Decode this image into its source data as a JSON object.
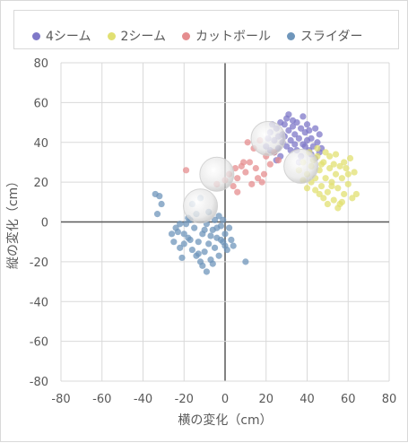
{
  "chart_data": {
    "type": "scatter",
    "xlabel": "横の変化（cm）",
    "ylabel": "縦の変化（cm）",
    "xlim": [
      -80,
      80
    ],
    "ylim": [
      -80,
      80
    ],
    "xticks": [
      -80,
      -60,
      -40,
      -20,
      0,
      20,
      40,
      60,
      80
    ],
    "yticks": [
      -80,
      -60,
      -40,
      -20,
      0,
      20,
      40,
      60,
      80
    ],
    "grid": true,
    "legend_position": "top",
    "series": [
      {
        "name": "4シーム",
        "color": "#7f78c8",
        "points": [
          [
            20,
            38
          ],
          [
            22,
            45
          ],
          [
            24,
            41
          ],
          [
            25,
            47
          ],
          [
            26,
            43
          ],
          [
            27,
            50
          ],
          [
            28,
            44
          ],
          [
            29,
            49
          ],
          [
            30,
            52
          ],
          [
            31,
            46
          ],
          [
            32,
            41
          ],
          [
            33,
            48
          ],
          [
            34,
            44
          ],
          [
            35,
            50
          ],
          [
            36,
            42
          ],
          [
            37,
            47
          ],
          [
            38,
            39
          ],
          [
            39,
            45
          ],
          [
            40,
            49
          ],
          [
            41,
            36
          ],
          [
            42,
            42
          ],
          [
            43,
            38
          ],
          [
            44,
            47
          ],
          [
            45,
            40
          ],
          [
            46,
            35
          ],
          [
            30,
            38
          ],
          [
            32,
            36
          ],
          [
            28,
            40
          ],
          [
            26,
            37
          ],
          [
            24,
            35
          ],
          [
            35,
            36
          ],
          [
            37,
            33
          ],
          [
            39,
            38
          ],
          [
            42,
            34
          ],
          [
            29,
            43
          ],
          [
            31,
            54
          ],
          [
            33,
            51
          ],
          [
            23,
            49
          ],
          [
            21,
            42
          ],
          [
            44,
            32
          ],
          [
            46,
            44
          ],
          [
            25,
            31
          ],
          [
            27,
            33
          ],
          [
            36,
            30
          ],
          [
            40,
            41
          ],
          [
            34,
            39
          ],
          [
            38,
            53
          ],
          [
            22,
            36
          ],
          [
            47,
            37
          ],
          [
            41,
            46
          ]
        ],
        "mean": [
          21,
          42
        ]
      },
      {
        "name": "2シーム",
        "color": "#e1e072",
        "points": [
          [
            36,
            26
          ],
          [
            38,
            30
          ],
          [
            40,
            24
          ],
          [
            42,
            28
          ],
          [
            44,
            22
          ],
          [
            45,
            33
          ],
          [
            46,
            26
          ],
          [
            47,
            18
          ],
          [
            48,
            30
          ],
          [
            49,
            22
          ],
          [
            50,
            15
          ],
          [
            51,
            27
          ],
          [
            52,
            20
          ],
          [
            53,
            11
          ],
          [
            54,
            24
          ],
          [
            55,
            17
          ],
          [
            56,
            9
          ],
          [
            57,
            22
          ],
          [
            58,
            14
          ],
          [
            59,
            27
          ],
          [
            60,
            19
          ],
          [
            61,
            32
          ],
          [
            62,
            12
          ],
          [
            63,
            25
          ],
          [
            64,
            14
          ],
          [
            41,
            35
          ],
          [
            43,
            31
          ],
          [
            45,
            37
          ],
          [
            47,
            29
          ],
          [
            49,
            35
          ],
          [
            51,
            33
          ],
          [
            53,
            29
          ],
          [
            55,
            7
          ],
          [
            57,
            10
          ],
          [
            50,
            9
          ],
          [
            52,
            18
          ],
          [
            46,
            14
          ],
          [
            48,
            12
          ],
          [
            44,
            16
          ],
          [
            42,
            20
          ],
          [
            54,
            34
          ],
          [
            58,
            30
          ],
          [
            60,
            24
          ],
          [
            56,
            28
          ],
          [
            40,
            17
          ],
          [
            38,
            21
          ]
        ],
        "mean": [
          37,
          28
        ]
      },
      {
        "name": "カットボール",
        "color": "#e58d8f",
        "points": [
          [
            -19,
            26
          ],
          [
            -4,
            19
          ],
          [
            0,
            21
          ],
          [
            2,
            24
          ],
          [
            4,
            18
          ],
          [
            6,
            22
          ],
          [
            8,
            28
          ],
          [
            10,
            25
          ],
          [
            12,
            30
          ],
          [
            13,
            19
          ],
          [
            15,
            27
          ],
          [
            16,
            22
          ],
          [
            18,
            20
          ],
          [
            20,
            33
          ],
          [
            22,
            29
          ],
          [
            24,
            35
          ],
          [
            26,
            31
          ],
          [
            11,
            40
          ],
          [
            14,
            37
          ],
          [
            17,
            41
          ],
          [
            6,
            15
          ],
          [
            9,
            30
          ],
          [
            5,
            27
          ],
          [
            19,
            24
          ]
        ],
        "mean": [
          -4,
          24
        ]
      },
      {
        "name": "スライダー",
        "color": "#6f96bb",
        "points": [
          [
            -34,
            14
          ],
          [
            -32,
            13
          ],
          [
            -31,
            9
          ],
          [
            -33,
            4
          ],
          [
            -26,
            -6
          ],
          [
            -25,
            -10
          ],
          [
            -24,
            -3
          ],
          [
            -22,
            -13
          ],
          [
            -21,
            -18
          ],
          [
            -20,
            -6
          ],
          [
            -19,
            -1
          ],
          [
            -18,
            2
          ],
          [
            -17,
            -9
          ],
          [
            -16,
            -14
          ],
          [
            -15,
            -3
          ],
          [
            -14,
            4
          ],
          [
            -13,
            -10
          ],
          [
            -12,
            -20
          ],
          [
            -11,
            -6
          ],
          [
            -10,
            -15
          ],
          [
            -9,
            -1
          ],
          [
            -8,
            -11
          ],
          [
            -7,
            -19
          ],
          [
            -6,
            -4
          ],
          [
            -5,
            -13
          ],
          [
            -4,
            -8
          ],
          [
            -3,
            -17
          ],
          [
            -2,
            -2
          ],
          [
            -1,
            -10
          ],
          [
            0,
            -6
          ],
          [
            1,
            -14
          ],
          [
            2,
            -3
          ],
          [
            3,
            -9
          ],
          [
            4,
            -12
          ],
          [
            -16,
            9
          ],
          [
            -12,
            12
          ],
          [
            -8,
            5
          ],
          [
            -5,
            1
          ],
          [
            -3,
            3
          ],
          [
            -11,
            -22
          ],
          [
            -9,
            -25
          ],
          [
            -6,
            -21
          ],
          [
            -14,
            -17
          ],
          [
            -18,
            -8
          ],
          [
            -22,
            -1
          ],
          [
            -20,
            -11
          ],
          [
            -7,
            -7
          ],
          [
            -4,
            -3
          ],
          [
            10,
            -20
          ],
          [
            -1,
            1
          ],
          [
            0,
            -12
          ],
          [
            -13,
            -16
          ],
          [
            -10,
            -4
          ],
          [
            -17,
            1
          ],
          [
            -23,
            -5
          ],
          [
            -2,
            -9
          ]
        ],
        "mean": [
          -12,
          8
        ]
      }
    ]
  }
}
